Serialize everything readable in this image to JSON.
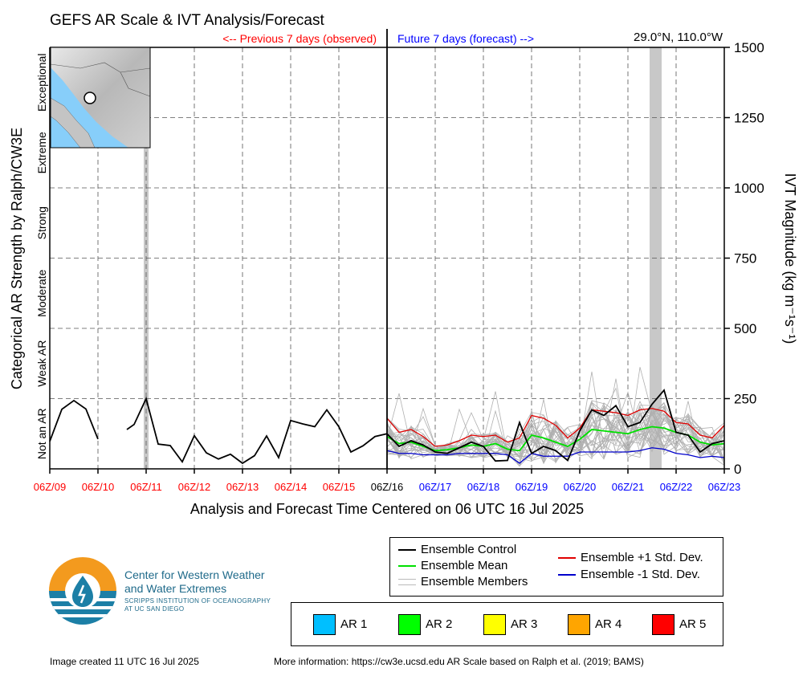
{
  "title": "GEFS AR Scale & IVT Analysis/Forecast",
  "prev_label": "<-- Previous 7 days (observed)",
  "future_label": "Future 7 days (forecast) -->",
  "location": "29.0°N, 110.0°W",
  "colors": {
    "past": "#ff0000",
    "future": "#0000ff",
    "control": "#000000",
    "mean": "#00e000",
    "plus_sd": "#e00000",
    "minus_sd": "#0000cc",
    "members": "#b0b0b0",
    "shade": "#c8c8c8"
  },
  "chart_data": {
    "type": "line",
    "title": "GEFS AR Scale & IVT Analysis/Forecast",
    "xlabel": "Analysis and Forecast Time Centered on 06 UTC 16 Jul 2025",
    "ylabel_left": "Categorical AR Strength by Ralph/CW3E",
    "ylabel_right": "IVT Magnitude (kg m⁻¹s⁻¹)",
    "ylim": [
      0,
      1500
    ],
    "yticks": [
      "0",
      "250",
      "500",
      "750",
      "1000",
      "1250",
      "1500"
    ],
    "xticks": [
      {
        "label": "06Z/09",
        "color": "past"
      },
      {
        "label": "06Z/10",
        "color": "past"
      },
      {
        "label": "06Z/11",
        "color": "past"
      },
      {
        "label": "06Z/12",
        "color": "past"
      },
      {
        "label": "06Z/13",
        "color": "past"
      },
      {
        "label": "06Z/14",
        "color": "past"
      },
      {
        "label": "06Z/15",
        "color": "past"
      },
      {
        "label": "06Z/16",
        "color": "now"
      },
      {
        "label": "06Z/17",
        "color": "future"
      },
      {
        "label": "06Z/18",
        "color": "future"
      },
      {
        "label": "06Z/19",
        "color": "future"
      },
      {
        "label": "06Z/20",
        "color": "future"
      },
      {
        "label": "06Z/21",
        "color": "future"
      },
      {
        "label": "06Z/22",
        "color": "future"
      },
      {
        "label": "06Z/23",
        "color": "future"
      }
    ],
    "categories": [
      "Not an AR",
      "Weak AR",
      "Moderate",
      "Strong",
      "Extreme",
      "Exceptional"
    ],
    "shaded_periods_days": [
      [
        1.95,
        2.05
      ],
      [
        12.45,
        12.7
      ]
    ],
    "observed": [
      [
        0,
        98
      ],
      [
        0.25,
        212
      ],
      [
        0.5,
        243
      ],
      [
        0.75,
        213
      ],
      [
        1.0,
        106
      ],
      null,
      [
        1.6,
        140
      ],
      [
        1.75,
        158
      ],
      [
        2.0,
        250
      ],
      [
        2.25,
        88
      ],
      [
        2.5,
        83
      ],
      [
        2.75,
        25
      ],
      [
        3.0,
        118
      ],
      [
        3.25,
        57
      ],
      [
        3.5,
        35
      ],
      [
        3.75,
        52
      ],
      [
        4.0,
        20
      ],
      [
        4.25,
        47
      ],
      [
        4.5,
        117
      ],
      [
        4.75,
        40
      ],
      [
        5.0,
        172
      ],
      [
        5.25,
        160
      ],
      [
        5.5,
        150
      ],
      [
        5.75,
        210
      ],
      [
        6.0,
        150
      ],
      [
        6.25,
        60
      ],
      [
        6.5,
        82
      ],
      [
        6.75,
        115
      ],
      [
        7.0,
        125
      ]
    ],
    "series": [
      {
        "name": "Ensemble Control",
        "x": [
          7.0,
          7.25,
          7.5,
          7.75,
          8.0,
          8.25,
          8.5,
          8.75,
          9.0,
          9.25,
          9.5,
          9.75,
          10.0,
          10.25,
          10.5,
          10.75,
          11.0,
          11.25,
          11.5,
          11.75,
          12.0,
          12.25,
          12.5,
          12.75,
          13.0,
          13.25,
          13.5,
          13.75,
          14.0
        ],
        "values": [
          125,
          80,
          100,
          85,
          60,
          55,
          75,
          95,
          80,
          28,
          30,
          165,
          55,
          80,
          65,
          30,
          135,
          210,
          190,
          225,
          150,
          165,
          230,
          280,
          130,
          120,
          60,
          90,
          100
        ]
      },
      {
        "name": "Ensemble Mean",
        "x": [
          7.0,
          7.25,
          7.5,
          7.75,
          8.0,
          8.25,
          8.5,
          8.75,
          9.0,
          9.25,
          9.5,
          9.75,
          10.0,
          10.25,
          10.5,
          10.75,
          11.0,
          11.25,
          11.5,
          11.75,
          12.0,
          12.25,
          12.5,
          12.75,
          13.0,
          13.25,
          13.5,
          13.75,
          14.0
        ],
        "values": [
          115,
          90,
          95,
          80,
          65,
          68,
          75,
          85,
          80,
          90,
          70,
          65,
          120,
          110,
          95,
          80,
          105,
          140,
          135,
          130,
          125,
          140,
          150,
          145,
          130,
          120,
          95,
          85,
          90
        ]
      },
      {
        "name": "Ensemble +1 Std. Dev.",
        "x": [
          7.0,
          7.25,
          7.5,
          7.75,
          8.0,
          8.25,
          8.5,
          8.75,
          9.0,
          9.25,
          9.5,
          9.75,
          10.0,
          10.25,
          10.5,
          10.75,
          11.0,
          11.25,
          11.5,
          11.75,
          12.0,
          12.25,
          12.5,
          12.75,
          13.0,
          13.25,
          13.5,
          13.75,
          14.0
        ],
        "values": [
          180,
          130,
          140,
          115,
          80,
          85,
          100,
          120,
          115,
          120,
          95,
          110,
          190,
          180,
          155,
          110,
          145,
          210,
          205,
          200,
          190,
          210,
          215,
          205,
          165,
          160,
          120,
          110,
          155
        ]
      },
      {
        "name": "Ensemble -1 Std. Dev.",
        "x": [
          7.0,
          7.25,
          7.5,
          7.75,
          8.0,
          8.25,
          8.5,
          8.75,
          9.0,
          9.25,
          9.5,
          9.75,
          10.0,
          10.25,
          10.5,
          10.75,
          11.0,
          11.25,
          11.5,
          11.75,
          12.0,
          12.25,
          12.5,
          12.75,
          13.0,
          13.25,
          13.5,
          13.75,
          14.0
        ],
        "values": [
          65,
          55,
          55,
          50,
          50,
          50,
          55,
          55,
          55,
          55,
          50,
          20,
          55,
          45,
          45,
          45,
          60,
          60,
          60,
          60,
          60,
          65,
          75,
          70,
          55,
          50,
          40,
          45,
          40
        ]
      }
    ],
    "member_count": 30
  },
  "legend": {
    "control": "Ensemble Control",
    "mean": "Ensemble Mean",
    "members": "Ensemble Members",
    "plus_sd": "Ensemble +1 Std. Dev.",
    "minus_sd": "Ensemble -1 Std. Dev."
  },
  "ar_legend": [
    {
      "label": "AR 1",
      "color": "#00bfff"
    },
    {
      "label": "AR 2",
      "color": "#00ff00"
    },
    {
      "label": "AR 3",
      "color": "#ffff00"
    },
    {
      "label": "AR 4",
      "color": "#ffa500"
    },
    {
      "label": "AR 5",
      "color": "#ff0000"
    }
  ],
  "logo": {
    "line1": "Center for Western Weather",
    "line2": "and Water Extremes",
    "line3": "SCRIPPS INSTITUTION OF OCEANOGRAPHY",
    "line4": "AT UC SAN DIEGO"
  },
  "footer": {
    "created": "Image created 11 UTC 16 Jul 2025",
    "more_info": "More information: https://cw3e.ucsd.edu AR Scale based on Ralph et al. (2019; BAMS)"
  }
}
